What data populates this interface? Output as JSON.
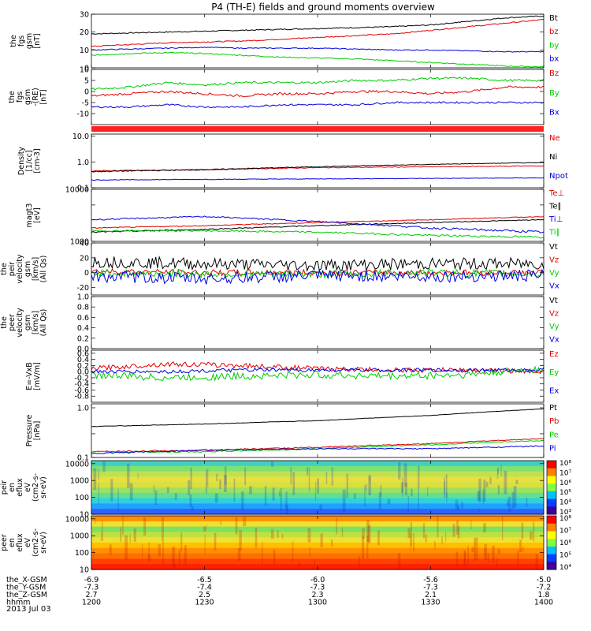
{
  "title": "P4 (TH-E) fields and ground moments overview",
  "date_label": "2013 Jul 03",
  "colors": {
    "black": "#000000",
    "red": "#e00000",
    "green": "#00cc00",
    "blue": "#0000dd",
    "bar": "#ff2020"
  },
  "time_axis": {
    "row_labels": [
      "the_X-GSM",
      "the_Y-GSM",
      "the_Z-GSM",
      "hhmm"
    ],
    "ticks": [
      {
        "x_gsm": "-6.9",
        "y_gsm": "-7.3",
        "z_gsm": "2.7",
        "hhmm": "1200"
      },
      {
        "x_gsm": "-6.5",
        "y_gsm": "-7.4",
        "z_gsm": "2.5",
        "hhmm": "1230"
      },
      {
        "x_gsm": "-6.0",
        "y_gsm": "-7.3",
        "z_gsm": "2.3",
        "hhmm": "1300"
      },
      {
        "x_gsm": "-5.6",
        "y_gsm": "-7.3",
        "z_gsm": "2.1",
        "hhmm": "1330"
      },
      {
        "x_gsm": "-5.0",
        "y_gsm": "-7.2",
        "z_gsm": "1.8",
        "hhmm": "1400"
      }
    ]
  },
  "chart_data": [
    {
      "type": "line",
      "ylabel": [
        "the",
        "fgs",
        "gsm",
        "[nT]"
      ],
      "ylim": [
        0,
        30
      ],
      "log": false,
      "ytick_labels": [
        "30",
        "20",
        "10",
        "0"
      ],
      "ytick_values": [
        30,
        20,
        10,
        0
      ],
      "legend": [
        {
          "name": "Bt",
          "color": "black"
        },
        {
          "name": "bz",
          "color": "red"
        },
        {
          "name": "by",
          "color": "green"
        },
        {
          "name": "bx",
          "color": "blue"
        }
      ],
      "series": [
        {
          "name": "Bt",
          "color": "black",
          "x": [
            1200,
            1210,
            1220,
            1230,
            1240,
            1250,
            1300,
            1310,
            1320,
            1330,
            1340,
            1350,
            1400
          ],
          "y": [
            19,
            19.5,
            20,
            20.5,
            21,
            21.5,
            22,
            22.5,
            23,
            24,
            26,
            28,
            29
          ],
          "noise": 0.3
        },
        {
          "name": "bz",
          "color": "red",
          "x": [
            1200,
            1210,
            1220,
            1230,
            1240,
            1250,
            1300,
            1310,
            1320,
            1330,
            1340,
            1350,
            1400
          ],
          "y": [
            12,
            13,
            14,
            14.5,
            15,
            16,
            17,
            18,
            19,
            21,
            23,
            25,
            27
          ],
          "noise": 0.3
        },
        {
          "name": "by",
          "color": "green",
          "x": [
            1200,
            1210,
            1220,
            1230,
            1240,
            1250,
            1300,
            1310,
            1320,
            1330,
            1340,
            1350,
            1400
          ],
          "y": [
            7,
            8,
            8.5,
            8,
            7,
            6,
            5.5,
            5,
            4,
            3,
            2,
            1,
            0.5
          ],
          "noise": 0.3
        },
        {
          "name": "bx",
          "color": "blue",
          "x": [
            1200,
            1210,
            1220,
            1230,
            1240,
            1250,
            1300,
            1310,
            1320,
            1330,
            1340,
            1350,
            1400
          ],
          "y": [
            10,
            10.5,
            11,
            11.5,
            11,
            11,
            11,
            10.5,
            10,
            10,
            9.5,
            9,
            9
          ],
          "noise": 0.25
        }
      ]
    },
    {
      "type": "line",
      "ylabel": [
        "the",
        "fgs",
        "gsm",
        "-(RE)",
        "[nT]"
      ],
      "ylim": [
        -15,
        10
      ],
      "log": false,
      "ytick_labels": [
        "10",
        "5",
        "0",
        "-5",
        "-10"
      ],
      "ytick_values": [
        10,
        5,
        0,
        -5,
        -10
      ],
      "legend": [
        {
          "name": "Bz",
          "color": "red"
        },
        {
          "name": "By",
          "color": "green"
        },
        {
          "name": "Bx",
          "color": "blue"
        }
      ],
      "series": [
        {
          "name": "Bz",
          "color": "red",
          "x": [
            1200,
            1210,
            1220,
            1230,
            1240,
            1250,
            1300,
            1310,
            1320,
            1330,
            1340,
            1350,
            1400
          ],
          "y": [
            -2,
            -1,
            0,
            -1,
            -2,
            -1,
            -1,
            0,
            0,
            -1,
            0,
            2,
            2
          ],
          "noise": 0.5
        },
        {
          "name": "By",
          "color": "green",
          "x": [
            1200,
            1210,
            1220,
            1230,
            1240,
            1250,
            1300,
            1310,
            1320,
            1330,
            1340,
            1350,
            1400
          ],
          "y": [
            1,
            2,
            4,
            3,
            4,
            4,
            4,
            5,
            5,
            6,
            6,
            5,
            5
          ],
          "noise": 0.5
        },
        {
          "name": "Bx",
          "color": "blue",
          "x": [
            1200,
            1210,
            1220,
            1230,
            1240,
            1250,
            1300,
            1310,
            1320,
            1330,
            1340,
            1350,
            1400
          ],
          "y": [
            -7,
            -7,
            -6,
            -7,
            -7,
            -6,
            -6,
            -6,
            -5,
            -5,
            -5,
            -5,
            -5
          ],
          "noise": 0.4
        }
      ]
    },
    {
      "type": "line",
      "ylabel": [
        "Density",
        "[1/cc]",
        "[cm-3]"
      ],
      "ylim": [
        0.1,
        12
      ],
      "log": true,
      "ytick_labels": [
        "10.0",
        "1.0",
        "0.1"
      ],
      "ytick_values": [
        10,
        1,
        0.1
      ],
      "legend": [
        {
          "name": "Ne",
          "color": "red"
        },
        {
          "name": "Ni",
          "color": "black"
        },
        {
          "name": "Npot",
          "color": "blue"
        }
      ],
      "series": [
        {
          "name": "Ne",
          "color": "red",
          "x": [
            1200,
            1230,
            1300,
            1330,
            1400
          ],
          "y": [
            0.45,
            0.5,
            0.6,
            0.65,
            0.7
          ],
          "noise": 0.02
        },
        {
          "name": "Ni",
          "color": "black",
          "x": [
            1200,
            1230,
            1300,
            1330,
            1400
          ],
          "y": [
            0.42,
            0.5,
            0.65,
            0.8,
            0.95
          ],
          "noise": 0.02
        },
        {
          "name": "Npot",
          "color": "blue",
          "x": [
            1200,
            1230,
            1300,
            1330,
            1400
          ],
          "y": [
            0.2,
            0.21,
            0.22,
            0.23,
            0.24
          ],
          "noise": 0.005
        }
      ]
    },
    {
      "type": "line",
      "ylabel": [
        "magt3",
        "[eV]"
      ],
      "ylim": [
        1000,
        10000
      ],
      "log": true,
      "ytick_labels": [
        "10000",
        "",
        "1000"
      ],
      "ytick_values": [
        10000,
        5000,
        1000
      ],
      "legend": [
        {
          "name": "Te⊥",
          "color": "red"
        },
        {
          "name": "Te∥",
          "color": "black"
        },
        {
          "name": "Ti⊥",
          "color": "blue"
        },
        {
          "name": "Ti∥",
          "color": "green"
        }
      ],
      "series": [
        {
          "name": "Te⊥",
          "color": "red",
          "x": [
            1200,
            1230,
            1300,
            1330,
            1400
          ],
          "y": [
            1800,
            2000,
            2300,
            2600,
            3000
          ],
          "noise": 40
        },
        {
          "name": "Te∥",
          "color": "black",
          "x": [
            1200,
            1230,
            1300,
            1330,
            1400
          ],
          "y": [
            1500,
            1700,
            2000,
            2300,
            2600
          ],
          "noise": 40
        },
        {
          "name": "Ti⊥",
          "color": "blue",
          "x": [
            1200,
            1230,
            1300,
            1330,
            1400
          ],
          "y": [
            2600,
            3000,
            2400,
            1800,
            1500
          ],
          "noise": 80
        },
        {
          "name": "Ti∥",
          "color": "green",
          "x": [
            1200,
            1230,
            1300,
            1330,
            1400
          ],
          "y": [
            1600,
            1600,
            1500,
            1300,
            1200
          ],
          "noise": 60
        }
      ]
    },
    {
      "type": "line",
      "ylabel": [
        "the",
        "peir",
        "velocity",
        "gsm",
        "[km/s]",
        "(All Qs)"
      ],
      "ylim": [
        -30,
        40
      ],
      "log": false,
      "ytick_labels": [
        "40",
        "20",
        "0",
        "-20"
      ],
      "ytick_values": [
        40,
        20,
        0,
        -20
      ],
      "legend": [
        {
          "name": "Vt",
          "color": "black"
        },
        {
          "name": "Vz",
          "color": "red"
        },
        {
          "name": "Vy",
          "color": "green"
        },
        {
          "name": "Vx",
          "color": "blue"
        }
      ],
      "series": [
        {
          "name": "Vt",
          "color": "black",
          "x": [
            1200,
            1230,
            1300,
            1330,
            1400
          ],
          "y": [
            15,
            12,
            10,
            12,
            12
          ],
          "noise": 8
        },
        {
          "name": "Vz",
          "color": "red",
          "x": [
            1200,
            1230,
            1300,
            1330,
            1400
          ],
          "y": [
            2,
            0,
            0,
            0,
            0
          ],
          "noise": 4
        },
        {
          "name": "Vy",
          "color": "green",
          "x": [
            1200,
            1230,
            1300,
            1330,
            1400
          ],
          "y": [
            0,
            -2,
            -2,
            0,
            -2
          ],
          "noise": 5
        },
        {
          "name": "Vx",
          "color": "blue",
          "x": [
            1200,
            1230,
            1300,
            1330,
            1400
          ],
          "y": [
            -5,
            -8,
            -4,
            -5,
            -4
          ],
          "noise": 8
        }
      ]
    },
    {
      "type": "line",
      "ylabel": [
        "the",
        "peer",
        "velocity",
        "gsm",
        "[km/s]",
        "(All Qs)"
      ],
      "ylim": [
        0,
        1
      ],
      "log": false,
      "ytick_labels": [
        "1.0",
        "0.8",
        "0.6",
        "0.4",
        "0.2",
        "0.0"
      ],
      "ytick_values": [
        1.0,
        0.8,
        0.6,
        0.4,
        0.2,
        0.0
      ],
      "legend": [
        {
          "name": "Vt",
          "color": "black"
        },
        {
          "name": "Vz",
          "color": "red"
        },
        {
          "name": "Vy",
          "color": "green"
        },
        {
          "name": "Vx",
          "color": "blue"
        }
      ],
      "series": []
    },
    {
      "type": "line",
      "ylabel": [
        "E=-VxB",
        "[mV/m]"
      ],
      "ylim": [
        -1,
        0.7
      ],
      "log": false,
      "ytick_labels": [
        "0.6",
        "0.4",
        "0.2",
        "0.0",
        "-0.2",
        "-0.4",
        "-0.6",
        "-0.8"
      ],
      "ytick_values": [
        0.6,
        0.4,
        0.2,
        0.0,
        -0.2,
        -0.4,
        -0.6,
        -0.8
      ],
      "legend": [
        {
          "name": "Ez",
          "color": "red"
        },
        {
          "name": "Ey",
          "color": "green"
        },
        {
          "name": "Ex",
          "color": "blue"
        }
      ],
      "series": [
        {
          "name": "Ez",
          "color": "red",
          "x": [
            1200,
            1220,
            1240,
            1300,
            1320,
            1340,
            1400
          ],
          "y": [
            0.1,
            0.25,
            0.2,
            0.1,
            0.05,
            0.05,
            0
          ],
          "noise": 0.08
        },
        {
          "name": "Ey",
          "color": "green",
          "x": [
            1200,
            1220,
            1240,
            1300,
            1320,
            1340,
            1400
          ],
          "y": [
            -0.1,
            -0.2,
            -0.15,
            -0.1,
            -0.15,
            -0.1,
            0.1
          ],
          "noise": 0.12
        },
        {
          "name": "Ex",
          "color": "blue",
          "x": [
            1200,
            1220,
            1240,
            1300,
            1320,
            1340,
            1400
          ],
          "y": [
            0,
            0,
            0.05,
            0.05,
            0.05,
            0.05,
            0.05
          ],
          "noise": 0.06
        }
      ]
    },
    {
      "type": "line",
      "ylabel": [
        "Pressure",
        "[nPa]"
      ],
      "ylim": [
        0.1,
        1.2
      ],
      "log": true,
      "ytick_labels": [
        "1.0",
        "",
        "0.1"
      ],
      "ytick_values": [
        1.0,
        0.3,
        0.1
      ],
      "legend": [
        {
          "name": "Pt",
          "color": "black"
        },
        {
          "name": "Pb",
          "color": "red"
        },
        {
          "name": "Pe",
          "color": "green"
        },
        {
          "name": "Pi",
          "color": "blue"
        }
      ],
      "series": [
        {
          "name": "Pt",
          "color": "black",
          "x": [
            1200,
            1230,
            1300,
            1330,
            1400
          ],
          "y": [
            0.42,
            0.47,
            0.55,
            0.7,
            0.95
          ],
          "noise": 0.005
        },
        {
          "name": "Pb",
          "color": "red",
          "x": [
            1200,
            1230,
            1300,
            1330,
            1400
          ],
          "y": [
            0.13,
            0.14,
            0.16,
            0.19,
            0.24
          ],
          "noise": 0.004
        },
        {
          "name": "Pe",
          "color": "green",
          "x": [
            1200,
            1230,
            1300,
            1330,
            1400
          ],
          "y": [
            0.13,
            0.13,
            0.15,
            0.18,
            0.22
          ],
          "noise": 0.004
        },
        {
          "name": "Pi",
          "color": "blue",
          "x": [
            1200,
            1230,
            1300,
            1330,
            1400
          ],
          "y": [
            0.12,
            0.14,
            0.15,
            0.15,
            0.17
          ],
          "noise": 0.004
        }
      ]
    },
    {
      "type": "heatmap",
      "ylabel": [
        "the",
        "peir",
        "en",
        "eflux",
        "eV",
        "(cm2-s-",
        "sr-eV)"
      ],
      "ylim": [
        10,
        15000
      ],
      "log": true,
      "ytick_labels": [
        "10000",
        "1000",
        "100",
        "10"
      ],
      "ytick_values": [
        10000,
        1000,
        100,
        10
      ],
      "colorbar_labels": [
        "10⁸",
        "10⁷",
        "10⁶",
        "10⁵",
        "10⁴",
        "10³"
      ]
    },
    {
      "type": "heatmap",
      "ylabel": [
        "the",
        "peer",
        "en",
        "eflux",
        "eV",
        "(cm2-s-",
        "sr-eV)"
      ],
      "ylim": [
        10,
        15000
      ],
      "log": true,
      "ytick_labels": [
        "10000",
        "1000",
        "100",
        "10"
      ],
      "ytick_values": [
        10000,
        1000,
        100,
        10
      ],
      "colorbar_labels": [
        "10⁸",
        "10⁷",
        "10⁶",
        "10⁵",
        "10⁴"
      ]
    }
  ]
}
